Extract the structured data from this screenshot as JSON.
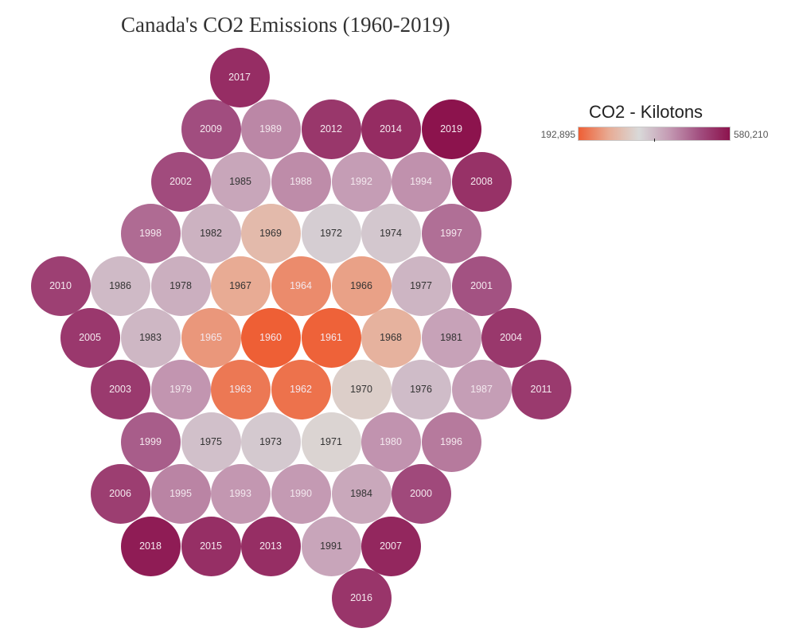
{
  "chart_data": {
    "type": "bubble-hex",
    "title": "Canada's CO2 Emissions (1960-2019)",
    "legend": {
      "title": "CO2 - Kilotons",
      "min_label": "192,895",
      "max_label": "580,210",
      "min": 192895,
      "max": 580210,
      "colors": [
        "#ee5f35",
        "#e8ab94",
        "#d9d9d9",
        "#c49ab3",
        "#a24f80",
        "#8c134d"
      ]
    },
    "cells": [
      {
        "year": "1960",
        "value": 192895
      },
      {
        "year": "1961",
        "value": 196000
      },
      {
        "year": "1962",
        "value": 212000
      },
      {
        "year": "1963",
        "value": 218000
      },
      {
        "year": "1964",
        "value": 238000
      },
      {
        "year": "1965",
        "value": 250000
      },
      {
        "year": "1966",
        "value": 260000
      },
      {
        "year": "1967",
        "value": 270000
      },
      {
        "year": "1968",
        "value": 282000
      },
      {
        "year": "1969",
        "value": 296000
      },
      {
        "year": "1970",
        "value": 330000
      },
      {
        "year": "1971",
        "value": 340000
      },
      {
        "year": "1972",
        "value": 362000
      },
      {
        "year": "1973",
        "value": 368000
      },
      {
        "year": "1974",
        "value": 370000
      },
      {
        "year": "1975",
        "value": 378000
      },
      {
        "year": "1976",
        "value": 383000
      },
      {
        "year": "1977",
        "value": 392000
      },
      {
        "year": "1978",
        "value": 400000
      },
      {
        "year": "1979",
        "value": 430000
      },
      {
        "year": "1980",
        "value": 432000
      },
      {
        "year": "1981",
        "value": 415000
      },
      {
        "year": "1982",
        "value": 396000
      },
      {
        "year": "1983",
        "value": 390000
      },
      {
        "year": "1984",
        "value": 408000
      },
      {
        "year": "1985",
        "value": 410000
      },
      {
        "year": "1986",
        "value": 386000
      },
      {
        "year": "1987",
        "value": 420000
      },
      {
        "year": "1988",
        "value": 440000
      },
      {
        "year": "1989",
        "value": 445000
      },
      {
        "year": "1990",
        "value": 425000
      },
      {
        "year": "1991",
        "value": 412000
      },
      {
        "year": "1992",
        "value": 422000
      },
      {
        "year": "1993",
        "value": 428000
      },
      {
        "year": "1994",
        "value": 435000
      },
      {
        "year": "1995",
        "value": 448000
      },
      {
        "year": "1996",
        "value": 458000
      },
      {
        "year": "1997",
        "value": 470000
      },
      {
        "year": "1998",
        "value": 474000
      },
      {
        "year": "1999",
        "value": 488000
      },
      {
        "year": "2000",
        "value": 510000
      },
      {
        "year": "2001",
        "value": 500000
      },
      {
        "year": "2002",
        "value": 508000
      },
      {
        "year": "2003",
        "value": 530000
      },
      {
        "year": "2004",
        "value": 533000
      },
      {
        "year": "2005",
        "value": 532000
      },
      {
        "year": "2006",
        "value": 525000
      },
      {
        "year": "2007",
        "value": 555000
      },
      {
        "year": "2008",
        "value": 540000
      },
      {
        "year": "2009",
        "value": 505000
      },
      {
        "year": "2010",
        "value": 522000
      },
      {
        "year": "2011",
        "value": 530000
      },
      {
        "year": "2012",
        "value": 534000
      },
      {
        "year": "2013",
        "value": 545000
      },
      {
        "year": "2014",
        "value": 548000
      },
      {
        "year": "2015",
        "value": 544000
      },
      {
        "year": "2016",
        "value": 536000
      },
      {
        "year": "2017",
        "value": 546000
      },
      {
        "year": "2018",
        "value": 568000
      },
      {
        "year": "2019",
        "value": 580210
      }
    ]
  }
}
